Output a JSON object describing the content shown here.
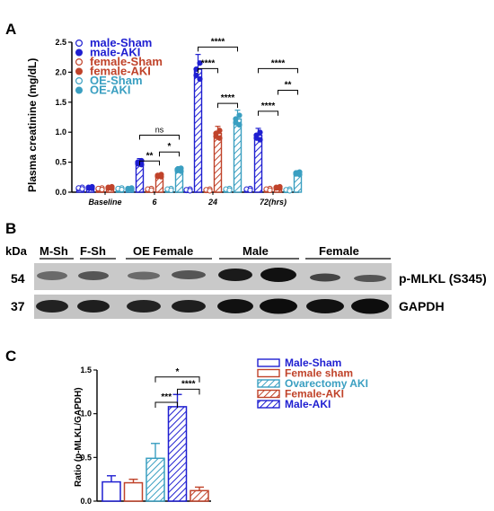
{
  "panels": {
    "a": "A",
    "b": "B",
    "c": "C"
  },
  "colors": {
    "male": "#1f1fd1",
    "female": "#c0432a",
    "oe": "#3a9fc1",
    "black": "#000000"
  },
  "chart_data": [
    {
      "type": "bar",
      "panel": "A",
      "ylabel": "Plasma creatinine (mg/dL)",
      "ylim": [
        0,
        2.5
      ],
      "yticks": [
        "0.0",
        "0.5",
        "1.0",
        "1.5",
        "2.0",
        "2.5"
      ],
      "categories": [
        "Baseline",
        "6",
        "24",
        "72(hrs)"
      ],
      "legend_position": "top-left",
      "series": [
        {
          "name": "male-Sham",
          "values": [
            0.07,
            0.05,
            0.04,
            0.05
          ],
          "color": "#1f1fd1",
          "fill": "open"
        },
        {
          "name": "male-AKI",
          "values": [
            0.08,
            0.5,
            2.05,
            0.95
          ],
          "color": "#1f1fd1",
          "fill": "hatched"
        },
        {
          "name": "female-Sham",
          "values": [
            0.06,
            0.05,
            0.04,
            0.05
          ],
          "color": "#c0432a",
          "fill": "open"
        },
        {
          "name": "female-AKI",
          "values": [
            0.08,
            0.28,
            0.98,
            0.08
          ],
          "color": "#c0432a",
          "fill": "hatched"
        },
        {
          "name": "OE-Sham",
          "values": [
            0.06,
            0.05,
            0.05,
            0.04
          ],
          "color": "#3a9fc1",
          "fill": "open"
        },
        {
          "name": "OE-AKI",
          "values": [
            0.06,
            0.38,
            1.22,
            0.32
          ],
          "color": "#3a9fc1",
          "fill": "hatched"
        }
      ],
      "significance": [
        {
          "label": "ns",
          "group": "6"
        },
        {
          "label": "**",
          "group": "6"
        },
        {
          "label": "*",
          "group": "6"
        },
        {
          "label": "****",
          "group": "24"
        },
        {
          "label": "****",
          "group": "24"
        },
        {
          "label": "****",
          "group": "24"
        },
        {
          "label": "****",
          "group": "72(hrs)"
        },
        {
          "label": "****",
          "group": "72(hrs)"
        },
        {
          "label": "**",
          "group": "72(hrs)"
        }
      ]
    },
    {
      "type": "bar",
      "panel": "C",
      "ylabel": "Ratio (p-MLKL/GAPDH)",
      "ylim": [
        0,
        1.5
      ],
      "yticks": [
        "0.0",
        "0.5",
        "1.0",
        "1.5"
      ],
      "categories": [
        "Male-Sham",
        "Female sham",
        "Ovarectomy AKI",
        "Male-AKI",
        "Female-AKI"
      ],
      "values": [
        0.22,
        0.21,
        0.49,
        1.08,
        0.12
      ],
      "errors": [
        0.07,
        0.04,
        0.17,
        0.14,
        0.04
      ],
      "legend_position": "top-right",
      "series": [
        {
          "name": "Male-Sham",
          "color": "#1f1fd1",
          "fill": "open"
        },
        {
          "name": "Female sham",
          "color": "#c0432a",
          "fill": "open"
        },
        {
          "name": "Ovarectomy AKI",
          "color": "#3a9fc1",
          "fill": "hatched"
        },
        {
          "name": "Female-AKI",
          "color": "#c0432a",
          "fill": "hatched"
        },
        {
          "name": "Male-AKI",
          "color": "#1f1fd1",
          "fill": "hatched"
        }
      ],
      "significance": [
        {
          "label": "*"
        },
        {
          "label": "****"
        },
        {
          "label": "***"
        }
      ]
    }
  ],
  "blot": {
    "kda_label": "kDa",
    "lane_groups": [
      "M-Sh",
      "F-Sh",
      "OE Female",
      "Male",
      "Female"
    ],
    "rows": [
      {
        "kda": "54",
        "label": "p-MLKL (S345)"
      },
      {
        "kda": "37",
        "label": "GAPDH"
      }
    ]
  }
}
